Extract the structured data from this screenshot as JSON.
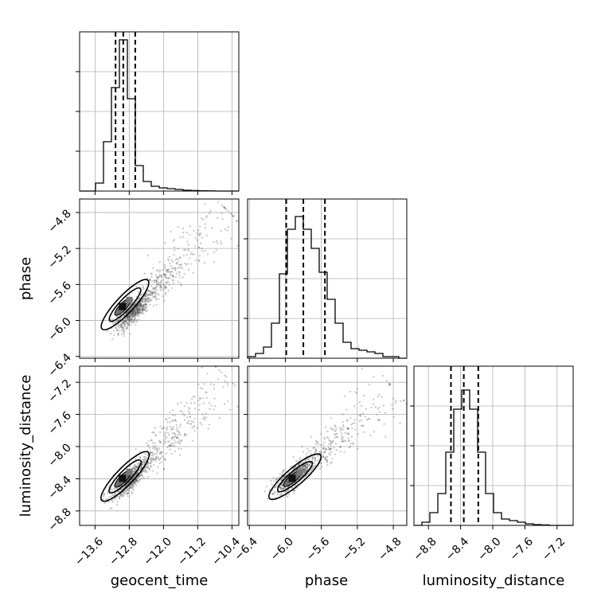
{
  "chart_data": {
    "type": "corner",
    "parameters": [
      "geocent_time",
      "phase",
      "luminosity_distance"
    ],
    "axis_labels": {
      "x": [
        "geocent_time",
        "phase",
        "luminosity_distance"
      ],
      "y": [
        "",
        "phase",
        "luminosity_distance"
      ]
    },
    "ranges": {
      "geocent_time": [
        -13.96,
        -10.24
      ],
      "phase": [
        -6.42,
        -4.65
      ],
      "luminosity_distance": [
        -8.98,
        -7.0
      ]
    },
    "ticks": {
      "geocent_time": [
        -13.6,
        -12.8,
        -12.0,
        -11.2,
        -10.4
      ],
      "phase": [
        -6.4,
        -6.0,
        -5.6,
        -5.2,
        -4.8
      ],
      "luminosity_distance": [
        -8.8,
        -8.4,
        -8.0,
        -7.6,
        -7.2
      ]
    },
    "tick_labels": {
      "geocent_time": [
        "−13.6",
        "−12.8",
        "−12.0",
        "−11.2",
        "−10.4"
      ],
      "phase": [
        "−6.4",
        "−6.0",
        "−5.6",
        "−5.2",
        "−4.8"
      ],
      "luminosity_distance": [
        "−8.8",
        "−8.4",
        "−8.0",
        "−7.6",
        "−7.2"
      ]
    },
    "quantiles": {
      "geocent_time": [
        -13.12,
        -12.94,
        -12.66
      ],
      "phase": [
        -5.99,
        -5.8,
        -5.56
      ],
      "luminosity_distance": [
        -8.52,
        -8.36,
        -8.18
      ]
    },
    "histograms": {
      "geocent_time": {
        "edges": [
          -13.96,
          -13.774,
          -13.588,
          -13.402,
          -13.216,
          -13.03,
          -12.844,
          -12.658,
          -12.472,
          -12.286,
          -12.1,
          -11.914,
          -11.728,
          -11.542,
          -11.356,
          -11.17,
          -10.984,
          -10.798,
          -10.612,
          -10.426,
          -10.24
        ],
        "counts": [
          0,
          0,
          0.05,
          0.31,
          0.65,
          0.95,
          0.58,
          0.16,
          0.06,
          0.03,
          0.02,
          0.015,
          0.01,
          0.005,
          0.003,
          0.002,
          0.001,
          0,
          0,
          0
        ]
      },
      "phase": {
        "edges": [
          -6.42,
          -6.3315,
          -6.243,
          -6.1545,
          -6.066,
          -5.9775,
          -5.889,
          -5.8005,
          -5.712,
          -5.6235,
          -5.535,
          -5.4465,
          -5.358,
          -5.2695,
          -5.181,
          -5.0925,
          -5.004,
          -4.9155,
          -4.827,
          -4.7385,
          -4.65
        ],
        "counts": [
          0.01,
          0.03,
          0.07,
          0.22,
          0.53,
          0.81,
          0.89,
          0.81,
          0.69,
          0.54,
          0.37,
          0.22,
          0.1,
          0.06,
          0.05,
          0.04,
          0.03,
          0.01,
          0.01,
          0
        ]
      },
      "luminosity_distance": {
        "edges": [
          -8.98,
          -8.881,
          -8.782,
          -8.683,
          -8.584,
          -8.485,
          -8.386,
          -8.287,
          -8.188,
          -8.089,
          -7.99,
          -7.891,
          -7.792,
          -7.693,
          -7.594,
          -7.495,
          -7.396,
          -7.297,
          -7.198,
          -7.099,
          -7.0
        ],
        "counts": [
          0,
          0.02,
          0.08,
          0.2,
          0.46,
          0.73,
          0.85,
          0.73,
          0.46,
          0.2,
          0.08,
          0.04,
          0.03,
          0.02,
          0.01,
          0.005,
          0.003,
          0,
          0,
          0
        ]
      }
    },
    "scatter_trend": {
      "phase_vs_geocent_time": {
        "start": [
          -13.4,
          -6.25
        ],
        "end": [
          -10.5,
          -4.78
        ],
        "peak": [
          -12.95,
          -5.85
        ]
      },
      "luminosity_distance_vs_geocent_time": {
        "start": [
          -13.4,
          -8.75
        ],
        "end": [
          -10.5,
          -7.15
        ],
        "peak": [
          -12.95,
          -8.4
        ]
      },
      "luminosity_distance_vs_phase": {
        "start": [
          -6.35,
          -8.8
        ],
        "end": [
          -4.78,
          -7.3
        ],
        "peak": [
          -5.92,
          -8.4
        ]
      }
    },
    "grid": true
  }
}
